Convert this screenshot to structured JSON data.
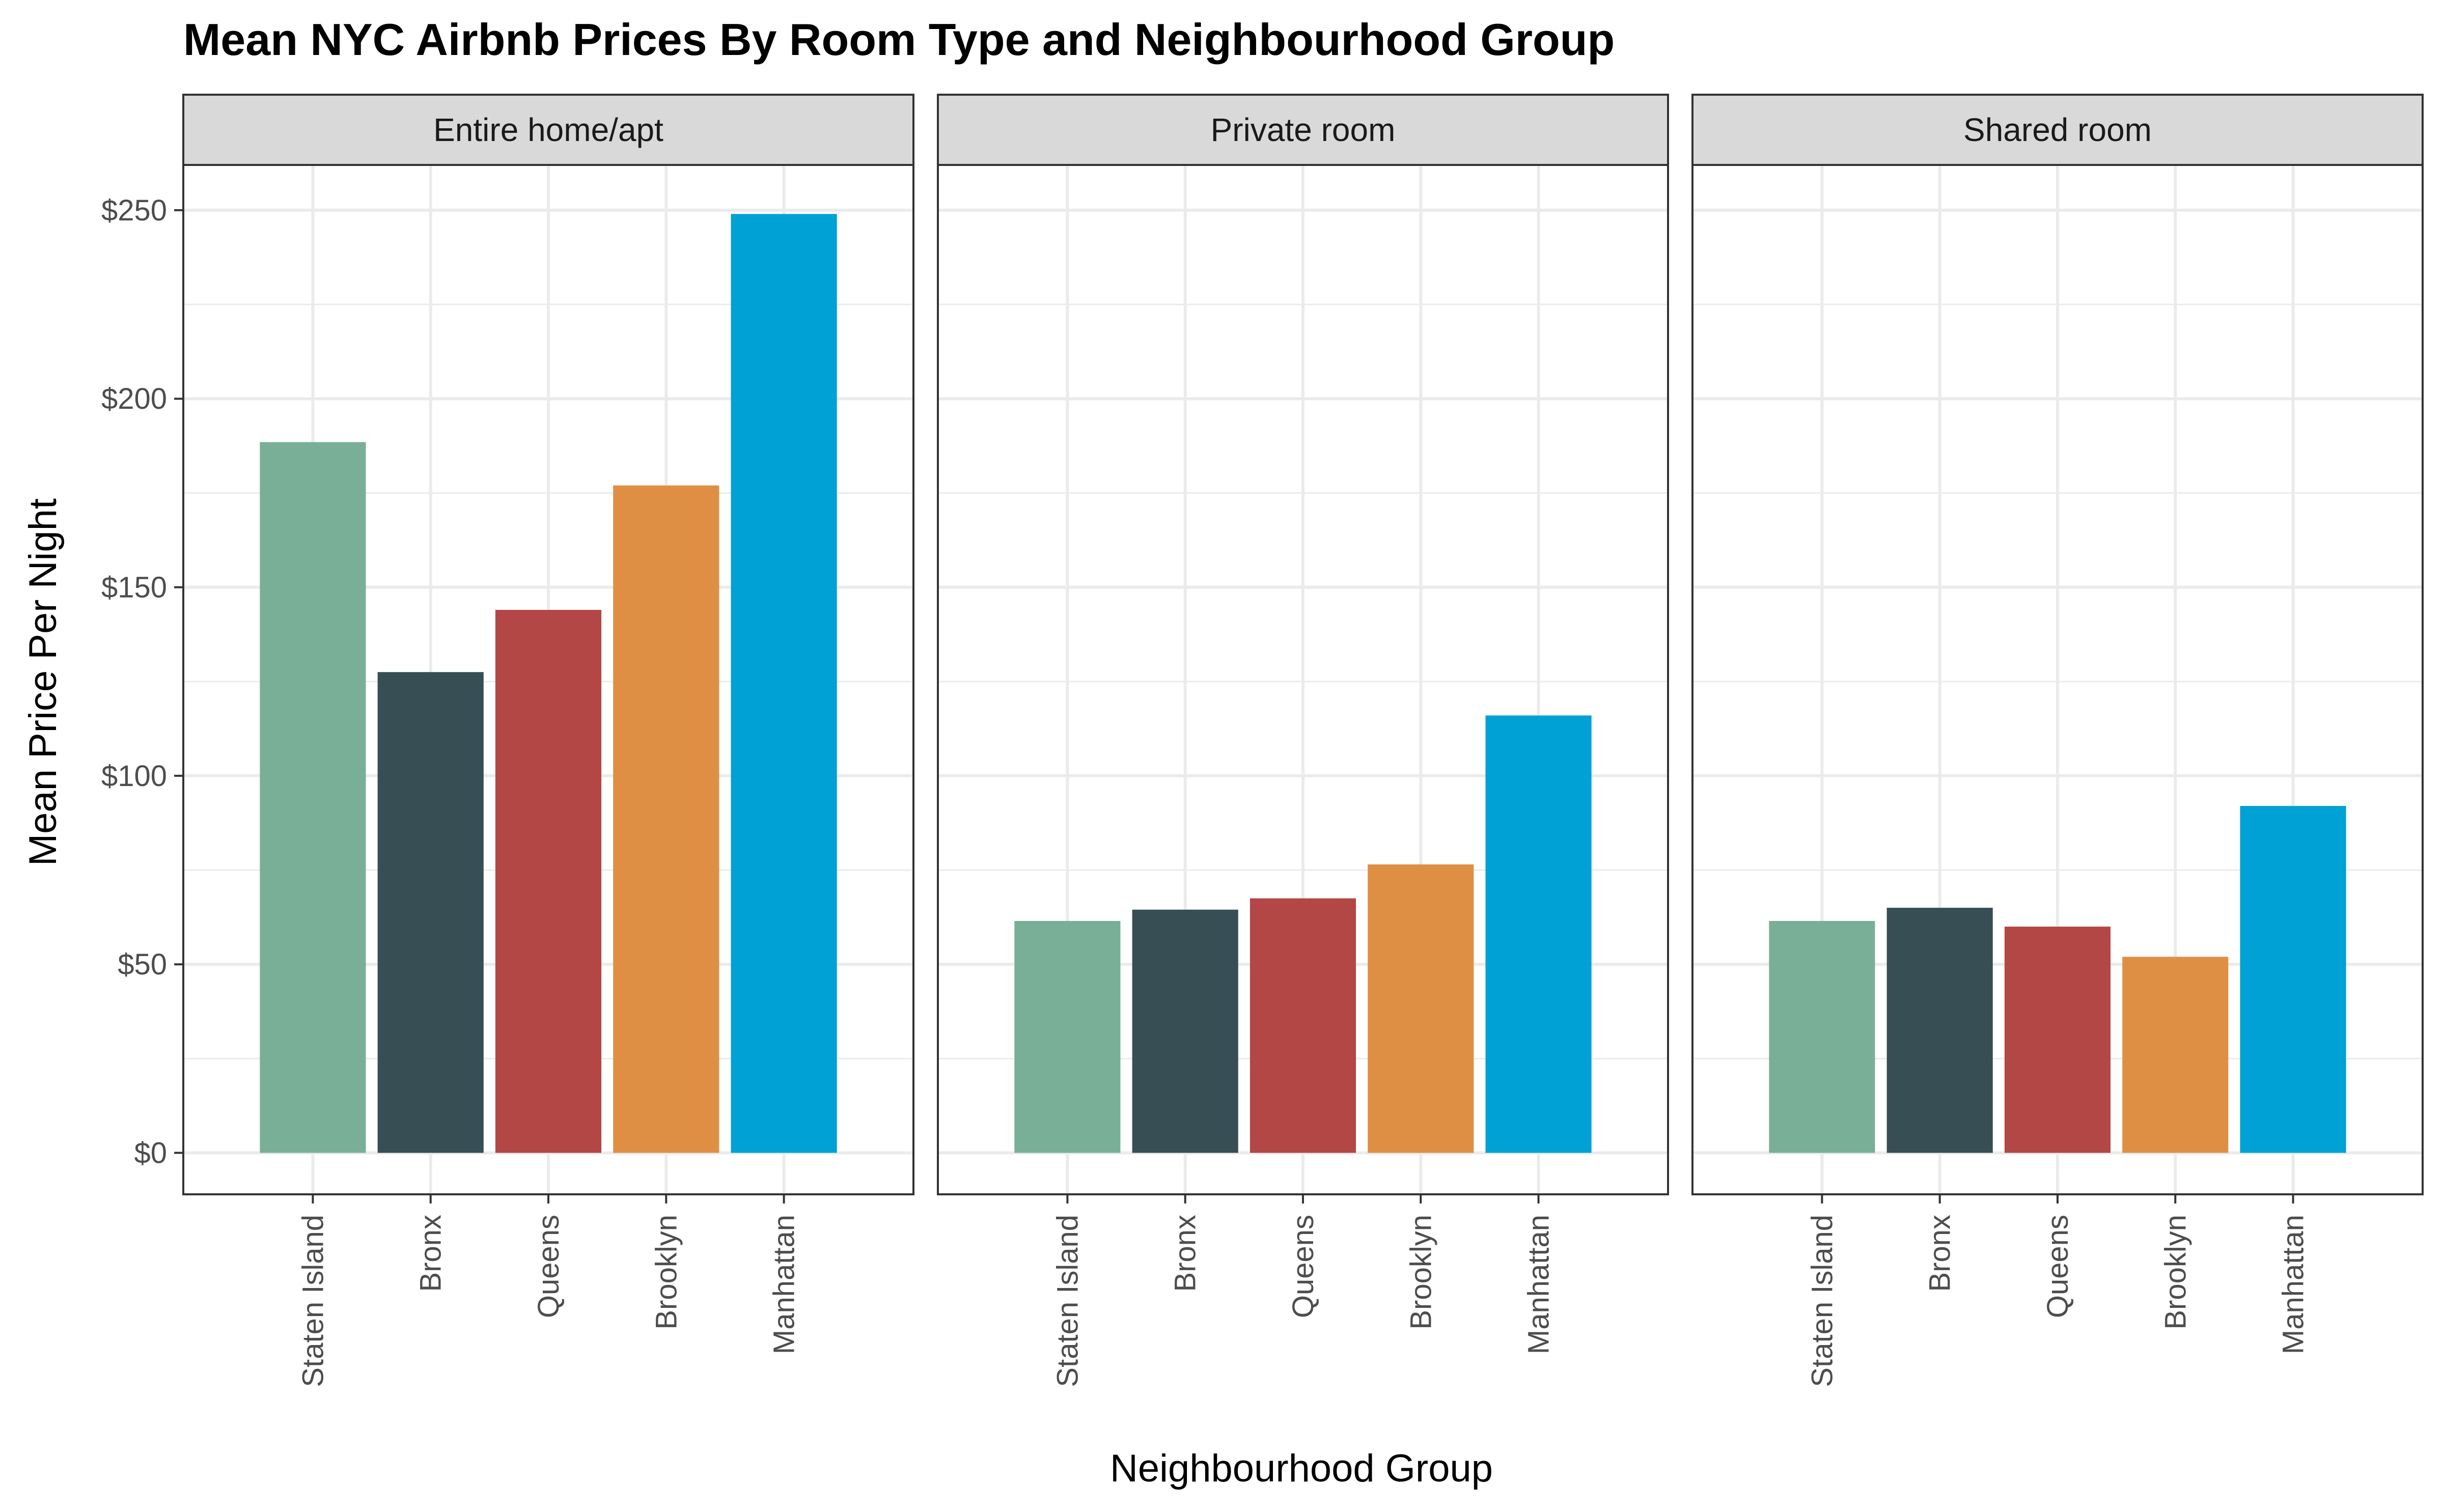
{
  "chart_data": {
    "type": "bar",
    "title": "Mean NYC Airbnb Prices By Room Type and Neighbourhood Group",
    "xlabel": "Neighbourhood Group",
    "ylabel": "Mean Price Per Night",
    "ylim": [
      -11,
      262
    ],
    "yticks": [
      0,
      50,
      100,
      150,
      200,
      250
    ],
    "ytick_labels": [
      "$0",
      "$50",
      "$100",
      "$150",
      "$200",
      "$250"
    ],
    "grid": true,
    "legend": "none",
    "categories": [
      "Staten Island",
      "Bronx",
      "Queens",
      "Brooklyn",
      "Manhattan"
    ],
    "category_colors": [
      "#79AF97",
      "#374E55",
      "#B24745",
      "#DF8F44",
      "#00A1D5"
    ],
    "panels": [
      {
        "name": "Entire home/apt",
        "values": [
          188.5,
          127.5,
          144.0,
          177.0,
          249.0
        ]
      },
      {
        "name": "Private room",
        "values": [
          61.5,
          64.5,
          67.5,
          76.5,
          116.0
        ]
      },
      {
        "name": "Shared room",
        "values": [
          61.5,
          65.0,
          60.0,
          52.0,
          92.0
        ]
      }
    ]
  }
}
